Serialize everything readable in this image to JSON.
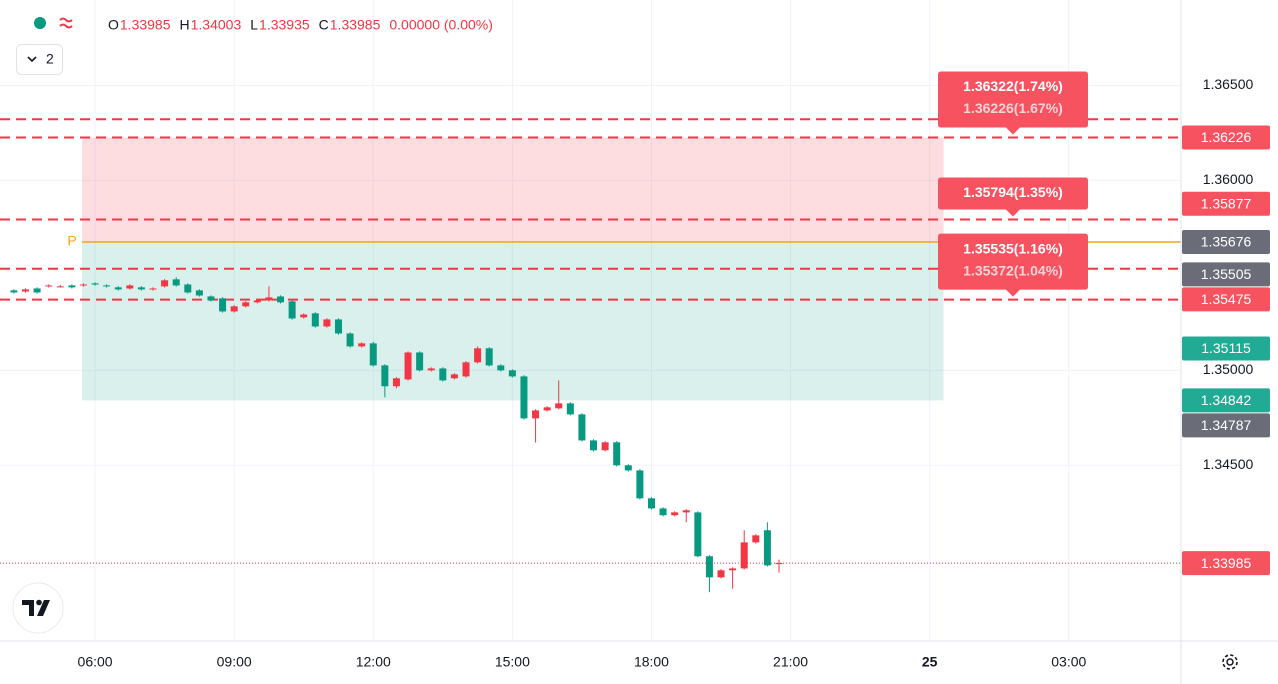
{
  "ui": {
    "collapse_count": "2",
    "ohlc": [
      {
        "label": "O",
        "value": "1.33985"
      },
      {
        "label": "H",
        "value": "1.34003"
      },
      {
        "label": "L",
        "value": "1.33935"
      },
      {
        "label": "C",
        "value": "1.33985"
      }
    ],
    "change": "0.00000 (0.00%)"
  },
  "chart_data": {
    "type": "candlestick",
    "up_color": "#f23645",
    "down_color": "#089981",
    "x": [
      4.25,
      4.5,
      4.75,
      5,
      5.25,
      5.5,
      5.75,
      6,
      6.25,
      6.5,
      6.75,
      7,
      7.25,
      7.5,
      7.75,
      8,
      8.25,
      8.5,
      8.75,
      9,
      9.25,
      9.5,
      9.75,
      10,
      10.25,
      10.5,
      10.75,
      11,
      11.25,
      11.5,
      11.75,
      12,
      12.25,
      12.5,
      12.75,
      13,
      13.25,
      13.5,
      13.75,
      14,
      14.25,
      14.5,
      14.75,
      15,
      15.25,
      15.5,
      15.75,
      16,
      16.25,
      16.5,
      16.75,
      17,
      17.25,
      17.5,
      17.75,
      18,
      18.25,
      18.5,
      18.75,
      19,
      19.25,
      19.5,
      19.75,
      20,
      20.25,
      20.5,
      20.75
    ],
    "open": [
      1.35421,
      1.35415,
      1.35431,
      1.35442,
      1.35442,
      1.35447,
      1.35447,
      1.35458,
      1.35447,
      1.35437,
      1.35431,
      1.35437,
      1.35426,
      1.35442,
      1.35479,
      1.35452,
      1.35421,
      1.35389,
      1.35379,
      1.3531,
      1.35337,
      1.35358,
      1.35368,
      1.35389,
      1.35363,
      1.35279,
      1.353,
      1.35231,
      1.35268,
      1.35194,
      1.35126,
      1.35142,
      1.35026,
      1.34916,
      1.34952,
      1.35094,
      1.35,
      1.3501,
      1.34958,
      1.34968,
      1.35042,
      1.35116,
      1.35026,
      1.35,
      1.34968,
      1.34747,
      1.34789,
      1.348,
      1.34826,
      1.34768,
      1.34631,
      1.34579,
      1.34621,
      1.345,
      1.34473,
      1.34326,
      1.34273,
      1.34237,
      1.34252,
      1.34252,
      1.34021,
      1.3391,
      1.33947,
      1.33957,
      1.34094,
      1.34158,
      1.33985
    ],
    "high": [
      1.35427,
      1.35432,
      1.35437,
      1.35453,
      1.3545,
      1.35453,
      1.35458,
      1.35463,
      1.35453,
      1.35443,
      1.35453,
      1.35443,
      1.35437,
      1.3548,
      1.3549,
      1.35458,
      1.35427,
      1.35395,
      1.35385,
      1.35343,
      1.35364,
      1.35374,
      1.35442,
      1.35395,
      1.35369,
      1.353,
      1.35306,
      1.35274,
      1.35274,
      1.352,
      1.35148,
      1.3515,
      1.35032,
      1.34964,
      1.351,
      1.351,
      1.35016,
      1.35016,
      1.34985,
      1.35048,
      1.35126,
      1.35122,
      1.35032,
      1.35006,
      1.34974,
      1.34795,
      1.34811,
      1.34947,
      1.34832,
      1.34774,
      1.34637,
      1.34627,
      1.34627,
      1.34506,
      1.34479,
      1.34332,
      1.34279,
      1.34258,
      1.34269,
      1.34258,
      1.34027,
      1.33953,
      1.33963,
      1.34158,
      1.34137,
      1.342,
      1.34003
    ],
    "low": [
      1.35404,
      1.35409,
      1.35404,
      1.35436,
      1.35436,
      1.35431,
      1.35441,
      1.35446,
      1.35436,
      1.3542,
      1.35425,
      1.3542,
      1.3542,
      1.35436,
      1.35441,
      1.35404,
      1.35388,
      1.35362,
      1.35304,
      1.35304,
      1.35331,
      1.35352,
      1.35362,
      1.35352,
      1.35267,
      1.35273,
      1.35225,
      1.35225,
      1.35188,
      1.3512,
      1.3512,
      1.3502,
      1.34858,
      1.34905,
      1.34946,
      1.34994,
      1.34994,
      1.34941,
      1.34952,
      1.34962,
      1.35036,
      1.3502,
      1.34994,
      1.34962,
      1.34741,
      1.3462,
      1.34783,
      1.34794,
      1.34762,
      1.34625,
      1.34573,
      1.34573,
      1.34494,
      1.34467,
      1.3432,
      1.34267,
      1.34231,
      1.34231,
      1.342,
      1.34015,
      1.33832,
      1.33904,
      1.3385,
      1.33951,
      1.34088,
      1.33967,
      1.33935
    ],
    "close": [
      1.3541,
      1.35426,
      1.3541,
      1.35447,
      1.35442,
      1.35437,
      1.35452,
      1.35452,
      1.35442,
      1.35426,
      1.35447,
      1.35426,
      1.35431,
      1.35474,
      1.35447,
      1.3541,
      1.35394,
      1.35368,
      1.3531,
      1.35337,
      1.35358,
      1.35368,
      1.35384,
      1.35358,
      1.35273,
      1.35294,
      1.35231,
      1.35268,
      1.35194,
      1.35126,
      1.35142,
      1.35026,
      1.34916,
      1.34958,
      1.35094,
      1.35,
      1.3501,
      1.34947,
      1.34979,
      1.35042,
      1.35116,
      1.35026,
      1.35,
      1.34968,
      1.34747,
      1.34789,
      1.34805,
      1.34826,
      1.34768,
      1.34631,
      1.34579,
      1.34621,
      1.345,
      1.34473,
      1.34326,
      1.34273,
      1.34237,
      1.34252,
      1.34263,
      1.34021,
      1.3391,
      1.33947,
      1.33957,
      1.34094,
      1.34131,
      1.33973,
      1.33985
    ],
    "xlim": [
      3.95,
      29.42
    ],
    "ylim": [
      1.3358,
      1.3695
    ],
    "xticks": [
      {
        "value": 6,
        "label": "06:00"
      },
      {
        "value": 9,
        "label": "09:00"
      },
      {
        "value": 12,
        "label": "12:00"
      },
      {
        "value": 15,
        "label": "15:00"
      },
      {
        "value": 18,
        "label": "18:00"
      },
      {
        "value": 21,
        "label": "21:00"
      },
      {
        "value": 24,
        "label": "25"
      },
      {
        "value": 27,
        "label": "03:00"
      }
    ],
    "yticks": [
      {
        "value": 1.345,
        "label": "1.34500"
      },
      {
        "value": 1.35,
        "label": "1.35000"
      },
      {
        "value": 1.36,
        "label": "1.36000"
      },
      {
        "value": 1.365,
        "label": "1.36500"
      }
    ],
    "grid": true,
    "position": {
      "entry": 1.35676,
      "stop": 1.36226,
      "target": 1.34842,
      "from": 5.72,
      "to": 24.3,
      "marker": "P",
      "entry_color": "#f7a21b",
      "stop_color": "#f23645",
      "target_color": "#089981"
    },
    "alert_lines": [
      1.36322,
      1.36226,
      1.35794,
      1.35535,
      1.35372
    ],
    "alert_color": "#f23645",
    "last_price": 1.33985,
    "callouts": [
      {
        "price": 1.36226,
        "texts": [
          "1.36322(1.74%)",
          "1.36226(1.67%)"
        ]
      },
      {
        "price": 1.35794,
        "texts": [
          "1.35794(1.35%)"
        ]
      },
      {
        "price": 1.35372,
        "texts": [
          "1.35535(1.16%)",
          "1.35372(1.04%)"
        ]
      }
    ],
    "price_labels": [
      {
        "price": 1.36226,
        "color": "#f7525f"
      },
      {
        "price": 1.35877,
        "color": "#f7525f"
      },
      {
        "price": 1.35676,
        "color": "#6a6d78"
      },
      {
        "price": 1.35505,
        "color": "#6a6d78"
      },
      {
        "price": 1.35475,
        "color": "#f7525f"
      },
      {
        "price": 1.35115,
        "color": "#22ab94"
      },
      {
        "price": 1.34842,
        "color": "#22ab94"
      },
      {
        "price": 1.34787,
        "color": "#6a6d78"
      },
      {
        "price": 1.33985,
        "color": "#f7525f"
      }
    ]
  }
}
